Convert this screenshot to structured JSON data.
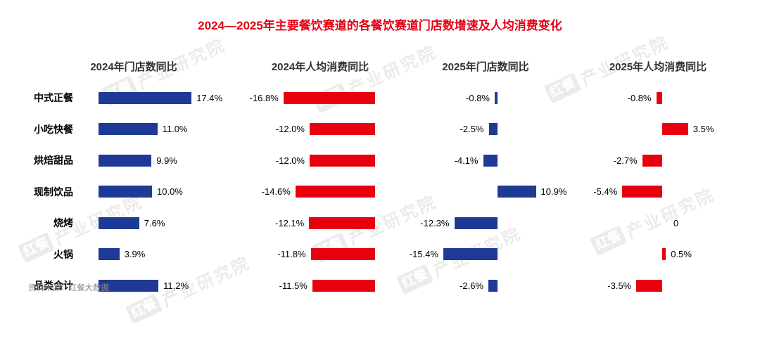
{
  "source": "资料来源：红餐大数据",
  "watermark": {
    "logo": "红餐",
    "text": "产业研究院"
  },
  "colors": {
    "blue": "#1e3a96",
    "red": "#e8000f",
    "title": "#e60012"
  },
  "chart_data": {
    "type": "bar",
    "orientation": "horizontal",
    "value_unit": "percent",
    "title": "2024—2025年主要餐饮赛道的各餐饮赛道门店数增速及人均消费变化",
    "categories": [
      "中式正餐",
      "小吃快餐",
      "烘焙甜品",
      "现制饮品",
      "烧烤",
      "火锅",
      "品类合计"
    ],
    "series": [
      {
        "name": "2024年门店数同比",
        "color": "#1e3a96",
        "values": [
          17.4,
          11.0,
          9.9,
          10.0,
          7.6,
          3.9,
          11.2
        ],
        "labels": [
          "17.4%",
          "11.0%",
          "9.9%",
          "10.0%",
          "7.6%",
          "3.9%",
          "11.2%"
        ]
      },
      {
        "name": "2024年人均消费同比",
        "color": "#e8000f",
        "values": [
          -16.8,
          -12.0,
          -12.0,
          -14.6,
          -12.1,
          -11.8,
          -11.5
        ],
        "labels": [
          "-16.8%",
          "-12.0%",
          "-12.0%",
          "-14.6%",
          "-12.1%",
          "-11.8%",
          "-11.5%"
        ]
      },
      {
        "name": "2025年门店数同比",
        "color": "#1e3a96",
        "values": [
          -0.8,
          -2.5,
          -4.1,
          10.9,
          -12.3,
          -15.4,
          -2.6
        ],
        "labels": [
          "-0.8%",
          "-2.5%",
          "-4.1%",
          "10.9%",
          "-12.3%",
          "-15.4%",
          "-2.6%"
        ]
      },
      {
        "name": "2025年人均消费同比",
        "color": "#e8000f",
        "values": [
          -0.8,
          3.5,
          -2.7,
          -5.4,
          0,
          0.5,
          -3.5
        ],
        "labels": [
          "-0.8%",
          "3.5%",
          "-2.7%",
          "-5.4%",
          "0",
          "0.5%",
          "-3.5%"
        ]
      }
    ],
    "legend_position": "none",
    "grid": false
  }
}
